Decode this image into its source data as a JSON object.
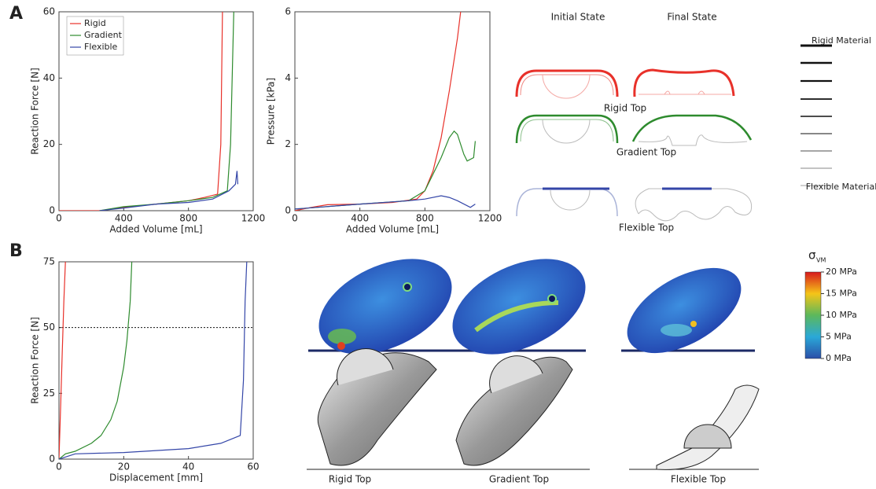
{
  "chart_data": [
    {
      "type": "line",
      "ylabel": "Reaction Force [N]",
      "xlabel": "Added Volume [mL]",
      "xlim": [
        0,
        1200
      ],
      "xticks": [
        0,
        400,
        800,
        1200
      ],
      "ylim": [
        0,
        60
      ],
      "yticks": [
        0,
        20,
        40,
        60
      ],
      "legend": "upper left",
      "series": [
        {
          "name": "Rigid",
          "color": "#e8312a",
          "x": [
            0,
            250,
            300,
            400,
            600,
            800,
            900,
            980,
            1000,
            1010
          ],
          "values": [
            0,
            0,
            0.3,
            1,
            2,
            3,
            4,
            5,
            20,
            60
          ]
        },
        {
          "name": "Gradient",
          "color": "#2e8b2e",
          "x": [
            250,
            400,
            600,
            800,
            950,
            1040,
            1060,
            1080
          ],
          "values": [
            0,
            1.2,
            2,
            3,
            4,
            6,
            20,
            60
          ]
        },
        {
          "name": "Flexible",
          "color": "#3446a8",
          "x": [
            250,
            400,
            600,
            800,
            950,
            1050,
            1090,
            1100,
            1105
          ],
          "values": [
            0,
            0.8,
            2,
            2.5,
            3.5,
            6,
            8,
            12,
            8
          ]
        }
      ]
    },
    {
      "type": "line",
      "ylabel": "Pressure [kPa]",
      "xlabel": "Added Volume [mL]",
      "xlim": [
        0,
        1200
      ],
      "xticks": [
        0,
        400,
        800,
        1200
      ],
      "ylim": [
        0,
        6
      ],
      "yticks": [
        0,
        2,
        4,
        6
      ],
      "series": [
        {
          "color": "#e8312a",
          "x": [
            0,
            100,
            200,
            400,
            600,
            750,
            800,
            850,
            900,
            950,
            1000,
            1020
          ],
          "values": [
            0,
            0.1,
            0.18,
            0.2,
            0.25,
            0.35,
            0.6,
            1.2,
            2.2,
            3.6,
            5.2,
            6
          ]
        },
        {
          "color": "#2e8b2e",
          "x": [
            0,
            400,
            700,
            800,
            900,
            950,
            980,
            1000,
            1040,
            1060,
            1100,
            1110
          ],
          "values": [
            0.05,
            0.2,
            0.3,
            0.6,
            1.6,
            2.2,
            2.4,
            2.3,
            1.7,
            1.5,
            1.6,
            2.1
          ]
        },
        {
          "color": "#3446a8",
          "x": [
            0,
            400,
            700,
            800,
            900,
            950,
            1000,
            1080,
            1110
          ],
          "values": [
            0.05,
            0.2,
            0.3,
            0.35,
            0.45,
            0.4,
            0.3,
            0.1,
            0.2
          ]
        }
      ]
    },
    {
      "type": "line",
      "ylabel": "Reaction Force [N]",
      "xlabel": "Displacement [mm]",
      "xlim": [
        0,
        60
      ],
      "xticks": [
        0,
        20,
        40,
        60
      ],
      "ylim": [
        0,
        75
      ],
      "yticks": [
        0,
        25,
        50,
        75
      ],
      "hline": 50,
      "series": [
        {
          "color": "#e8312a",
          "x": [
            0,
            0.5,
            1,
            1.5,
            2
          ],
          "values": [
            0,
            20,
            40,
            60,
            75
          ]
        },
        {
          "color": "#2e8b2e",
          "x": [
            0,
            2,
            5,
            10,
            13,
            16,
            18,
            20,
            21,
            22,
            22.5
          ],
          "values": [
            0,
            2,
            3,
            6,
            9,
            15,
            22,
            35,
            45,
            60,
            75
          ]
        },
        {
          "color": "#3446a8",
          "x": [
            0,
            5,
            20,
            40,
            50,
            56,
            57,
            57.5,
            58
          ],
          "values": [
            0,
            2,
            2.5,
            4,
            6,
            9,
            30,
            60,
            75
          ]
        }
      ]
    }
  ],
  "panels": [
    "A",
    "B"
  ],
  "diagram": {
    "columns": [
      "Initial State",
      "Final State"
    ],
    "rows": [
      "Rigid Top",
      "Gradient Top",
      "Flexible Top"
    ],
    "scale": [
      "Rigid Material",
      "Flexible Material"
    ]
  },
  "colorbar": {
    "symbol": "σ",
    "subscript": "VM",
    "ticks": [
      {
        "value": 20,
        "label": "20 MPa"
      },
      {
        "value": 15,
        "label": "15 MPa"
      },
      {
        "value": 10,
        "label": "10 MPa"
      },
      {
        "value": 5,
        "label": "5 MPa"
      },
      {
        "value": 0,
        "label": "0 MPa"
      }
    ]
  },
  "renders": [
    "Rigid Top",
    "Gradient Top",
    "Flexible Top"
  ]
}
